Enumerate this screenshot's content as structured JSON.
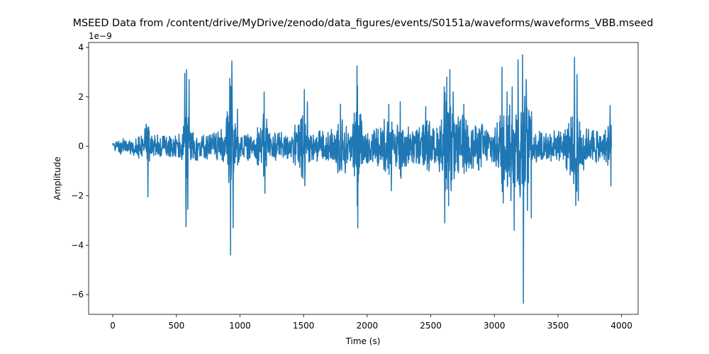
{
  "chart_data": {
    "type": "line",
    "title": "MSEED Data from /content/drive/MyDrive/zenodo/data_figures/events/S0151a/waveforms/waveforms_VBB.mseed",
    "xlabel": "Time (s)",
    "ylabel": "Amplitude",
    "y_offset_label": "1e−9",
    "y_scale": 1e-09,
    "xlim": [
      -190,
      4130
    ],
    "ylim": [
      -6.8,
      4.2
    ],
    "xticks": [
      0,
      500,
      1000,
      1500,
      2000,
      2500,
      3000,
      3500,
      4000
    ],
    "xtick_labels": [
      "0",
      "500",
      "1000",
      "1500",
      "2000",
      "2500",
      "3000",
      "3500",
      "4000"
    ],
    "yticks": [
      -6,
      -4,
      -2,
      0,
      2,
      4
    ],
    "ytick_labels": [
      "−6",
      "−4",
      "−2",
      "0",
      "2",
      "4"
    ],
    "grid": false,
    "line_color": "#1f77b4",
    "series": [
      {
        "x_range": [
          0,
          3920
        ],
        "envelope": [
          [
            0,
            0.3
          ],
          [
            60,
            0.45
          ],
          [
            150,
            0.6
          ],
          [
            200,
            0.7
          ],
          [
            260,
            1.7
          ],
          [
            275,
            1.8
          ],
          [
            300,
            0.9
          ],
          [
            380,
            0.8
          ],
          [
            480,
            0.7
          ],
          [
            540,
            0.9
          ],
          [
            565,
            2.5
          ],
          [
            580,
            3.1
          ],
          [
            595,
            2.9
          ],
          [
            620,
            1.1
          ],
          [
            700,
            0.8
          ],
          [
            800,
            0.9
          ],
          [
            880,
            1.2
          ],
          [
            920,
            2.7
          ],
          [
            935,
            3.45
          ],
          [
            960,
            1.6
          ],
          [
            1000,
            0.9
          ],
          [
            1100,
            0.8
          ],
          [
            1180,
            1.5
          ],
          [
            1190,
            2.2
          ],
          [
            1230,
            1.0
          ],
          [
            1320,
            0.8
          ],
          [
            1400,
            0.9
          ],
          [
            1505,
            2.3
          ],
          [
            1530,
            1.0
          ],
          [
            1600,
            0.9
          ],
          [
            1700,
            1.1
          ],
          [
            1790,
            1.7
          ],
          [
            1830,
            1.6
          ],
          [
            1880,
            1.2
          ],
          [
            1920,
            3.25
          ],
          [
            1960,
            1.3
          ],
          [
            2050,
            1.1
          ],
          [
            2150,
            1.7
          ],
          [
            2200,
            1.2
          ],
          [
            2260,
            1.8
          ],
          [
            2320,
            1.2
          ],
          [
            2400,
            1.1
          ],
          [
            2460,
            1.6
          ],
          [
            2550,
            1.2
          ],
          [
            2605,
            2.4
          ],
          [
            2650,
            3.1
          ],
          [
            2690,
            1.8
          ],
          [
            2760,
            1.7
          ],
          [
            2850,
            1.4
          ],
          [
            2940,
            1.2
          ],
          [
            3020,
            1.4
          ],
          [
            3060,
            3.2
          ],
          [
            3100,
            2.2
          ],
          [
            3140,
            2.4
          ],
          [
            3185,
            3.5
          ],
          [
            3220,
            3.7
          ],
          [
            3260,
            2.7
          ],
          [
            3300,
            1.1
          ],
          [
            3400,
            1.0
          ],
          [
            3550,
            1.0
          ],
          [
            3640,
            3.6
          ],
          [
            3680,
            1.7
          ],
          [
            3750,
            1.1
          ],
          [
            3880,
            1.1
          ],
          [
            3910,
            1.65
          ],
          [
            3920,
            0.8
          ]
        ],
        "spikes": [
          [
            275,
            1.75
          ],
          [
            275,
            -2.05
          ],
          [
            565,
            2.95
          ],
          [
            575,
            -3.25
          ],
          [
            580,
            3.1
          ],
          [
            590,
            -2.55
          ],
          [
            600,
            2.7
          ],
          [
            900,
            1.4
          ],
          [
            920,
            2.75
          ],
          [
            925,
            -4.4
          ],
          [
            935,
            3.45
          ],
          [
            945,
            -3.3
          ],
          [
            980,
            1.5
          ],
          [
            1190,
            2.2
          ],
          [
            1195,
            -1.9
          ],
          [
            1210,
            1.1
          ],
          [
            1505,
            2.3
          ],
          [
            1510,
            -1.6
          ],
          [
            1530,
            1.8
          ],
          [
            1790,
            1.7
          ],
          [
            1900,
            -1.2
          ],
          [
            1920,
            3.25
          ],
          [
            1925,
            -3.3
          ],
          [
            1950,
            1.3
          ],
          [
            2170,
            1.7
          ],
          [
            2190,
            -1.8
          ],
          [
            2260,
            1.8
          ],
          [
            2265,
            -1.3
          ],
          [
            2460,
            1.6
          ],
          [
            2605,
            2.4
          ],
          [
            2610,
            -3.1
          ],
          [
            2625,
            2.8
          ],
          [
            2640,
            -2.4
          ],
          [
            2650,
            3.1
          ],
          [
            2660,
            -1.8
          ],
          [
            2675,
            2.2
          ],
          [
            2690,
            -1.0
          ],
          [
            2760,
            1.7
          ],
          [
            3060,
            3.2
          ],
          [
            3070,
            -2.3
          ],
          [
            3100,
            2.2
          ],
          [
            3130,
            -2.2
          ],
          [
            3140,
            2.4
          ],
          [
            3155,
            -3.4
          ],
          [
            3185,
            3.5
          ],
          [
            3200,
            -1.7
          ],
          [
            3222,
            3.7
          ],
          [
            3228,
            -6.35
          ],
          [
            3250,
            2.7
          ],
          [
            3260,
            -2.6
          ],
          [
            3280,
            1.2
          ],
          [
            3290,
            -2.9
          ],
          [
            3630,
            3.6
          ],
          [
            3640,
            -2.4
          ],
          [
            3650,
            2.9
          ],
          [
            3660,
            -2.2
          ],
          [
            3910,
            1.65
          ],
          [
            3915,
            -1.6
          ]
        ]
      }
    ]
  }
}
